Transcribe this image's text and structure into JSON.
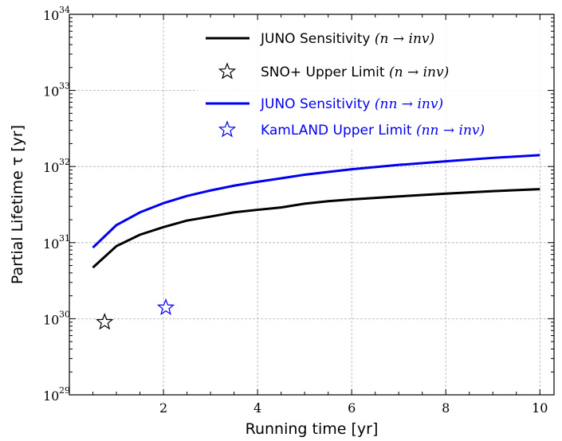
{
  "chart_data": {
    "type": "line",
    "xlabel": "Running time [yr]",
    "ylabel": "Partial Lifetime τ [yr]",
    "xlim": [
      0,
      10.3
    ],
    "ylim_log10": [
      29,
      34
    ],
    "y_scale": "log",
    "grid": true,
    "legend_position": "upper-right",
    "x_ticks": [
      "2",
      "4",
      "6",
      "8",
      "10"
    ],
    "y_ticks": [
      {
        "base": "10",
        "exp": "29"
      },
      {
        "base": "10",
        "exp": "30"
      },
      {
        "base": "10",
        "exp": "31"
      },
      {
        "base": "10",
        "exp": "32"
      },
      {
        "base": "10",
        "exp": "33"
      },
      {
        "base": "10",
        "exp": "34"
      }
    ],
    "series": [
      {
        "name": "JUNO Sensitivity (n → inv)",
        "name_text": "JUNO Sensitivity ",
        "name_math": "(n → inv)",
        "kind": "line",
        "color": "#000000",
        "x": [
          0.5,
          1,
          1.5,
          2,
          2.5,
          3,
          3.5,
          4,
          4.5,
          5,
          5.5,
          6,
          7,
          8,
          9,
          10
        ],
        "y": [
          4.7e+30,
          9e+30,
          1.27e+31,
          1.6e+31,
          1.95e+31,
          2.2e+31,
          2.5e+31,
          2.7e+31,
          2.9e+31,
          3.25e+31,
          3.5e+31,
          3.7e+31,
          4.05e+31,
          4.4e+31,
          4.75e+31,
          5.05e+31
        ]
      },
      {
        "name": "SNO+ Upper Limit (n → inv)",
        "name_text": "SNO+ Upper Limit ",
        "name_math": "(n → inv)",
        "kind": "marker",
        "marker": "star",
        "color": "#000000",
        "x": [
          0.75
        ],
        "y": [
          9e+29
        ]
      },
      {
        "name": "JUNO Sensitivity (nn → inv)",
        "name_text": "JUNO Sensitivity ",
        "name_math": "(nn → inv)",
        "kind": "line",
        "color": "#0000ee",
        "x": [
          0.5,
          1,
          1.5,
          2,
          2.5,
          3,
          3.5,
          4,
          4.5,
          5,
          5.5,
          6,
          7,
          8,
          9,
          10
        ],
        "y": [
          8.6e+30,
          1.7e+31,
          2.5e+31,
          3.3e+31,
          4.1e+31,
          4.85e+31,
          5.6e+31,
          6.3e+31,
          7e+31,
          7.8e+31,
          8.5e+31,
          9.2e+31,
          1.05e+32,
          1.17e+32,
          1.3e+32,
          1.41e+32
        ]
      },
      {
        "name": "KamLAND Upper Limit (nn → inv)",
        "name_text": "KamLAND Upper Limit ",
        "name_math": "(nn → inv)",
        "kind": "marker",
        "marker": "star",
        "color": "#0000ee",
        "x": [
          2.05
        ],
        "y": [
          1.4e+30
        ]
      }
    ]
  }
}
